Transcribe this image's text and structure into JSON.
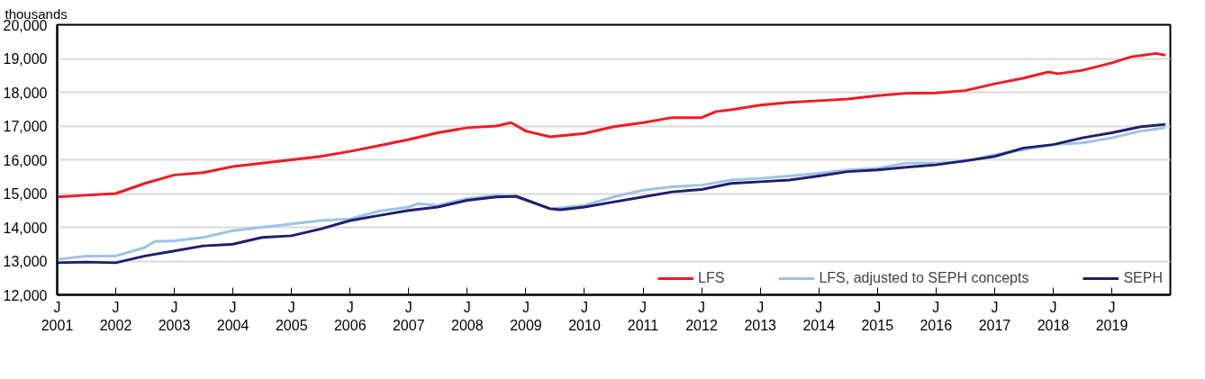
{
  "chart_data": {
    "type": "line",
    "ylabel": "thousands",
    "xlim": [
      "2001-01",
      "2020-01"
    ],
    "xticks": [
      {
        "value": "2001-01",
        "label": "J\n2001"
      },
      {
        "value": "2002-01",
        "label": "J\n2002"
      },
      {
        "value": "2003-01",
        "label": "J\n2003"
      },
      {
        "value": "2004-01",
        "label": "J\n2004"
      },
      {
        "value": "2005-01",
        "label": "J\n2005"
      },
      {
        "value": "2006-01",
        "label": "J\n2006"
      },
      {
        "value": "2007-01",
        "label": "J\n2007"
      },
      {
        "value": "2008-01",
        "label": "J\n2008"
      },
      {
        "value": "2009-01",
        "label": "J\n2009"
      },
      {
        "value": "2010-01",
        "label": "J\n2010"
      },
      {
        "value": "2011-01",
        "label": "J\n2011"
      },
      {
        "value": "2012-01",
        "label": "J\n2012"
      },
      {
        "value": "2013-01",
        "label": "J\n2013"
      },
      {
        "value": "2014-01",
        "label": "J\n2014"
      },
      {
        "value": "2015-01",
        "label": "J\n2015"
      },
      {
        "value": "2016-01",
        "label": "J\n2016"
      },
      {
        "value": "2017-01",
        "label": "J\n2017"
      },
      {
        "value": "2018-01",
        "label": "J\n2018"
      },
      {
        "value": "2019-01",
        "label": "J\n2019"
      }
    ],
    "ylim": [
      12000,
      20000
    ],
    "yticks": [
      {
        "value": 12000,
        "label": "12,000"
      },
      {
        "value": 13000,
        "label": "13,000"
      },
      {
        "value": 14000,
        "label": "14,000"
      },
      {
        "value": 15000,
        "label": "15,000"
      },
      {
        "value": 16000,
        "label": "16,000"
      },
      {
        "value": 17000,
        "label": "17,000"
      },
      {
        "value": 18000,
        "label": "18,000"
      },
      {
        "value": 19000,
        "label": "19,000"
      },
      {
        "value": 20000,
        "label": "20,000"
      }
    ],
    "grid": "y",
    "legend": "bottom",
    "marker": "none",
    "line_style": "solid",
    "series": [
      {
        "name": "LFS",
        "color": "#ee1c25",
        "x": [
          "2001-01",
          "2001-07",
          "2002-01",
          "2002-07",
          "2003-01",
          "2003-07",
          "2004-01",
          "2004-07",
          "2005-01",
          "2005-07",
          "2006-01",
          "2006-07",
          "2007-01",
          "2007-07",
          "2008-01",
          "2008-07",
          "2008-10",
          "2009-01",
          "2009-06",
          "2010-01",
          "2010-07",
          "2011-01",
          "2011-07",
          "2012-01",
          "2012-04",
          "2012-07",
          "2013-01",
          "2013-07",
          "2014-01",
          "2014-07",
          "2015-01",
          "2015-07",
          "2016-01",
          "2016-07",
          "2017-01",
          "2017-07",
          "2017-12",
          "2018-02",
          "2018-07",
          "2019-01",
          "2019-05",
          "2019-10",
          "2019-12"
        ],
        "values": [
          14900,
          14950,
          15000,
          15300,
          15550,
          15620,
          15800,
          15900,
          16000,
          16100,
          16250,
          16420,
          16600,
          16800,
          16950,
          17000,
          17100,
          16850,
          16680,
          16780,
          16980,
          17100,
          17250,
          17250,
          17430,
          17480,
          17620,
          17700,
          17750,
          17800,
          17900,
          17970,
          17980,
          18050,
          18250,
          18420,
          18600,
          18550,
          18650,
          18870,
          19050,
          19150,
          19100
        ]
      },
      {
        "name": "LFS, adjusted to SEPH concepts",
        "color": "#9dc3e6",
        "x": [
          "2001-01",
          "2001-07",
          "2002-01",
          "2002-07",
          "2002-09",
          "2003-01",
          "2003-07",
          "2004-01",
          "2004-07",
          "2005-01",
          "2005-07",
          "2006-01",
          "2006-07",
          "2007-01",
          "2007-03",
          "2007-07",
          "2008-01",
          "2008-07",
          "2008-11",
          "2009-06",
          "2010-01",
          "2010-07",
          "2011-01",
          "2011-07",
          "2012-01",
          "2012-07",
          "2013-01",
          "2013-07",
          "2014-01",
          "2014-07",
          "2015-01",
          "2015-07",
          "2016-01",
          "2016-07",
          "2017-01",
          "2017-07",
          "2018-01",
          "2018-07",
          "2019-01",
          "2019-07",
          "2019-12"
        ],
        "values": [
          13050,
          13150,
          13150,
          13400,
          13580,
          13600,
          13700,
          13900,
          14000,
          14100,
          14200,
          14250,
          14480,
          14600,
          14700,
          14650,
          14850,
          14950,
          14900,
          14550,
          14650,
          14900,
          15100,
          15200,
          15250,
          15400,
          15450,
          15520,
          15600,
          15700,
          15750,
          15900,
          15900,
          15950,
          16150,
          16300,
          16450,
          16500,
          16650,
          16850,
          16950
        ]
      },
      {
        "name": "SEPH",
        "color": "#1f1f6e",
        "x": [
          "2001-01",
          "2001-07",
          "2002-01",
          "2002-07",
          "2003-01",
          "2003-07",
          "2004-01",
          "2004-07",
          "2005-01",
          "2005-07",
          "2006-01",
          "2006-07",
          "2007-01",
          "2007-07",
          "2008-01",
          "2008-07",
          "2008-11",
          "2009-06",
          "2009-08",
          "2010-01",
          "2010-07",
          "2011-01",
          "2011-07",
          "2012-01",
          "2012-07",
          "2013-01",
          "2013-07",
          "2014-01",
          "2014-07",
          "2015-01",
          "2015-07",
          "2016-01",
          "2016-07",
          "2017-01",
          "2017-07",
          "2018-01",
          "2018-07",
          "2019-01",
          "2019-07",
          "2019-12"
        ],
        "values": [
          12950,
          12970,
          12950,
          13150,
          13300,
          13450,
          13500,
          13700,
          13750,
          13950,
          14200,
          14350,
          14500,
          14600,
          14800,
          14900,
          14920,
          14550,
          14520,
          14600,
          14750,
          14900,
          15050,
          15120,
          15300,
          15350,
          15400,
          15520,
          15650,
          15700,
          15780,
          15850,
          15970,
          16100,
          16350,
          16450,
          16650,
          16800,
          16980,
          17050
        ]
      }
    ]
  }
}
